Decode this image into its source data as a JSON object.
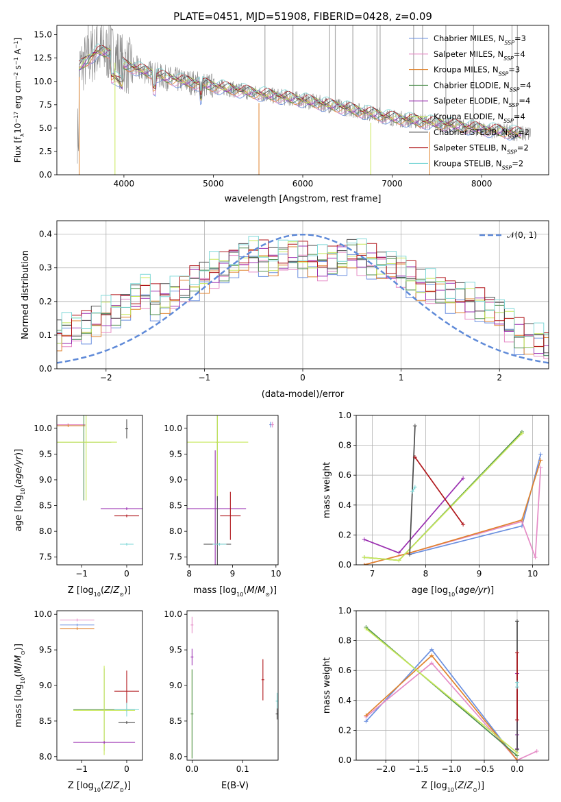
{
  "colors": {
    "Chabrier MILES": "#6a8fdf",
    "Salpeter MILES": "#e58bc6",
    "Kroupa MILES": "#e0822c",
    "Chabrier ELODIE": "#4e8f4e",
    "Salpeter ELODIE": "#9a2fb0",
    "Kroupa ELODIE": "#c8e85a",
    "Chabrier STELIB": "#4a4a4a",
    "Salpeter STELIB": "#b0151a",
    "Kroupa STELIB": "#7fd8d8",
    "gaussian": "#5f8ad8",
    "observed": "#888888"
  },
  "chart_data": [
    {
      "id": "spectrum",
      "type": "line",
      "title": "PLATE=0451, MJD=51908, FIBERID=0428, z=0.09",
      "xlabel": "wavelength [Angstrom, rest frame]",
      "ylabel": "Flux [f_λ10^{-17} erg cm^{-2} s^{-1} A^{-1}]",
      "xlim": [
        3250,
        8750
      ],
      "ylim": [
        0,
        16
      ],
      "xticks": [
        4000,
        5000,
        6000,
        7000,
        8000
      ],
      "yticks": [
        0.0,
        2.5,
        5.0,
        7.5,
        10.0,
        12.5,
        15.0
      ],
      "ytick_labels": [
        "0.0",
        "2.5",
        "5.0",
        "7.5",
        "10.0",
        "12.5",
        "15.0"
      ],
      "legend_placement": "right",
      "legend": [
        {
          "model": "Chabrier MILES",
          "nssp": "3"
        },
        {
          "model": "Salpeter MILES",
          "nssp": "4"
        },
        {
          "model": "Kroupa MILES",
          "nssp": "3"
        },
        {
          "model": "Chabrier ELODIE",
          "nssp": "4"
        },
        {
          "model": "Salpeter ELODIE",
          "nssp": "4"
        },
        {
          "model": "Kroupa ELODIE",
          "nssp": "4"
        },
        {
          "model": "Chabrier STELIB",
          "nssp": "2"
        },
        {
          "model": "Salpeter STELIB",
          "nssp": "2"
        },
        {
          "model": "Kroupa STELIB",
          "nssp": "2"
        }
      ],
      "continuum": {
        "x": [
          3500,
          3700,
          3900,
          4000,
          4200,
          4500,
          5000,
          5500,
          6000,
          6500,
          7000,
          7500,
          8000,
          8450
        ],
        "y": [
          11.5,
          13.2,
          13.0,
          11.8,
          11.2,
          10.3,
          9.5,
          8.7,
          8.0,
          7.1,
          6.1,
          5.5,
          4.9,
          4.4
        ]
      },
      "observed_range": [
        3480,
        8550
      ],
      "sky_lines": [
        3600,
        3650,
        3700,
        3750,
        3850,
        5577,
        5890,
        6300,
        6364,
        6560,
        6830,
        6865,
        7240,
        7340,
        7600,
        7910,
        8340,
        8400
      ]
    },
    {
      "id": "residuals",
      "type": "line",
      "xlabel": "(data-model)/error",
      "ylabel": "Normed distribution",
      "xlim": [
        -2.5,
        2.5
      ],
      "ylim": [
        0,
        0.44
      ],
      "xticks": [
        -2,
        -1,
        0,
        1,
        2
      ],
      "xtick_labels": [
        "−2",
        "−1",
        "0",
        "1",
        "2"
      ],
      "yticks": [
        0.0,
        0.1,
        0.2,
        0.3,
        0.4
      ],
      "ytick_labels": [
        "0.0",
        "0.1",
        "0.2",
        "0.3",
        "0.4"
      ],
      "grid": true,
      "legend_placement": "top-right",
      "gaussian_label": "𝒩(0, 1)",
      "bin_width": 0.1,
      "histogram_base": [
        0.1,
        0.11,
        0.12,
        0.13,
        0.14,
        0.16,
        0.17,
        0.19,
        0.21,
        0.23,
        0.2,
        0.21,
        0.22,
        0.24,
        0.26,
        0.27,
        0.29,
        0.3,
        0.32,
        0.33,
        0.34,
        0.33,
        0.32,
        0.33,
        0.34,
        0.33,
        0.32,
        0.31,
        0.32,
        0.33,
        0.34,
        0.33,
        0.32,
        0.31,
        0.3,
        0.29,
        0.27,
        0.25,
        0.24,
        0.23,
        0.22,
        0.21,
        0.2,
        0.19,
        0.18,
        0.16,
        0.13,
        0.1,
        0.09,
        0.08,
        0.07
      ]
    },
    {
      "id": "age-vs-z",
      "type": "scatter",
      "xlabel": "Z [log10(Z/Z⊙)]",
      "ylabel": "age  [log10(age/yr)]",
      "xlim": [
        -1.55,
        0.35
      ],
      "ylim": [
        7.35,
        10.25
      ],
      "xticks": [
        -1,
        0
      ],
      "xtick_labels": [
        "−1",
        "0"
      ],
      "yticks": [
        7.5,
        8.0,
        8.5,
        9.0,
        9.5,
        10.0
      ],
      "ytick_labels": [
        "7.5",
        "8.0",
        "8.5",
        "9.0",
        "9.5",
        "10.0"
      ],
      "points": [
        {
          "model": "Chabrier MILES",
          "x": -1.3,
          "y": 10.07
        },
        {
          "model": "Salpeter MILES",
          "x": -1.3,
          "y": 10.07
        },
        {
          "model": "Kroupa MILES",
          "x": -1.3,
          "y": 10.05
        },
        {
          "model": "Chabrier ELODIE",
          "x": -0.95,
          "y": 9.73
        },
        {
          "model": "Kroupa ELODIE",
          "x": -0.9,
          "y": 9.73
        },
        {
          "model": "Salpeter ELODIE",
          "x": 0.0,
          "y": 8.44
        },
        {
          "model": "Salpeter STELIB",
          "x": 0.0,
          "y": 8.3
        },
        {
          "model": "Kroupa STELIB",
          "x": 0.0,
          "y": 7.75
        },
        {
          "model": "Chabrier STELIB",
          "x": 0.0,
          "y": 9.99
        }
      ]
    },
    {
      "id": "age-vs-mass",
      "type": "scatter",
      "xlabel": "mass [log10(M/M⊙)]",
      "ylabel": "",
      "xlim": [
        7.95,
        10.05
      ],
      "ylim": [
        7.35,
        10.25
      ],
      "xticks": [
        8,
        9,
        10
      ],
      "xtick_labels": [
        "8",
        "9",
        "10"
      ],
      "yticks": [
        7.5,
        8.0,
        8.5,
        9.0,
        9.5,
        10.0
      ],
      "ytick_labels": [
        "7.5",
        "8.0",
        "8.5",
        "9.0",
        "9.5",
        "10.0"
      ],
      "points": [
        {
          "model": "Chabrier ELODIE",
          "x": 8.65,
          "y": 9.73
        },
        {
          "model": "Kroupa ELODIE",
          "x": 8.65,
          "y": 9.73
        },
        {
          "model": "Salpeter ELODIE",
          "x": 8.6,
          "y": 8.44
        },
        {
          "model": "Salpeter STELIB",
          "x": 8.95,
          "y": 8.3
        },
        {
          "model": "Chabrier STELIB",
          "x": 8.65,
          "y": 7.75
        },
        {
          "model": "Kroupa STELIB",
          "x": 8.7,
          "y": 7.75
        },
        {
          "model": "Chabrier MILES",
          "x": 9.88,
          "y": 10.07
        },
        {
          "model": "Salpeter MILES",
          "x": 9.92,
          "y": 10.07
        }
      ]
    },
    {
      "id": "weight-vs-age",
      "type": "line",
      "xlabel": "age  [log10(age/yr)]",
      "ylabel": "mass weight",
      "xlim": [
        6.7,
        10.3
      ],
      "ylim": [
        0.0,
        1.0
      ],
      "xticks": [
        7,
        8,
        9,
        10
      ],
      "xtick_labels": [
        "7",
        "8",
        "9",
        "10"
      ],
      "yticks": [
        0.0,
        0.2,
        0.4,
        0.6,
        0.8,
        1.0
      ],
      "ytick_labels": [
        "0.0",
        "0.2",
        "0.4",
        "0.6",
        "0.8",
        "1.0"
      ],
      "grid": true,
      "series": [
        {
          "model": "Chabrier MILES",
          "x": [
            7.7,
            9.8,
            10.15
          ],
          "y": [
            0.07,
            0.26,
            0.74
          ]
        },
        {
          "model": "Salpeter MILES",
          "x": [
            6.85,
            7.7,
            9.8,
            10.05,
            10.15
          ],
          "y": [
            0.0,
            0.08,
            0.29,
            0.05,
            0.65
          ]
        },
        {
          "model": "Kroupa MILES",
          "x": [
            6.85,
            7.7,
            9.8,
            10.15
          ],
          "y": [
            0.0,
            0.08,
            0.3,
            0.7
          ]
        },
        {
          "model": "Chabrier ELODIE",
          "x": [
            6.85,
            7.5,
            9.8
          ],
          "y": [
            0.05,
            0.03,
            0.89
          ]
        },
        {
          "model": "Salpeter ELODIE",
          "x": [
            6.85,
            7.5,
            8.7
          ],
          "y": [
            0.17,
            0.08,
            0.58
          ]
        },
        {
          "model": "Kroupa ELODIE",
          "x": [
            6.85,
            7.5,
            9.8
          ],
          "y": [
            0.05,
            0.03,
            0.88
          ]
        },
        {
          "model": "Chabrier STELIB",
          "x": [
            7.7,
            7.8
          ],
          "y": [
            0.07,
            0.93
          ]
        },
        {
          "model": "Salpeter STELIB",
          "x": [
            7.8,
            8.7
          ],
          "y": [
            0.72,
            0.27
          ]
        },
        {
          "model": "Kroupa STELIB",
          "x": [
            7.75,
            7.8
          ],
          "y": [
            0.49,
            0.52
          ]
        }
      ]
    },
    {
      "id": "mass-vs-z",
      "type": "scatter",
      "xlabel": "Z [log10(Z/Z⊙)]",
      "ylabel": "mass [log10(M/M⊙)]",
      "xlim": [
        -1.55,
        0.35
      ],
      "ylim": [
        7.95,
        10.05
      ],
      "xticks": [
        -1,
        0
      ],
      "xtick_labels": [
        "−1",
        "0"
      ],
      "yticks": [
        8.0,
        8.5,
        9.0,
        9.5,
        10.0
      ],
      "ytick_labels": [
        "8.0",
        "8.5",
        "9.0",
        "9.5",
        "10.0"
      ],
      "points": [
        {
          "model": "Salpeter MILES",
          "x": -1.1,
          "y": 9.92
        },
        {
          "model": "Chabrier MILES",
          "x": -1.1,
          "y": 9.85
        },
        {
          "model": "Kroupa MILES",
          "x": -1.1,
          "y": 9.8
        },
        {
          "model": "Chabrier ELODIE",
          "x": -0.5,
          "y": 8.66
        },
        {
          "model": "Kroupa ELODIE",
          "x": -0.5,
          "y": 8.65
        },
        {
          "model": "Salpeter ELODIE",
          "x": -0.5,
          "y": 8.2
        },
        {
          "model": "Salpeter STELIB",
          "x": 0.0,
          "y": 8.92
        },
        {
          "model": "Chabrier STELIB",
          "x": 0.0,
          "y": 8.48
        },
        {
          "model": "Kroupa STELIB",
          "x": 0.0,
          "y": 8.66
        }
      ]
    },
    {
      "id": "mass-vs-ebv",
      "type": "scatter",
      "xlabel": "E(B-V)",
      "ylabel": "",
      "xlim": [
        -0.01,
        0.17
      ],
      "ylim": [
        7.95,
        10.05
      ],
      "xticks": [
        0.0,
        0.1
      ],
      "xtick_labels": [
        "0.0",
        "0.1"
      ],
      "yticks": [
        8.0,
        8.5,
        9.0,
        9.5,
        10.0
      ],
      "ytick_labels": [
        "8.0",
        "8.5",
        "9.0",
        "9.5",
        "10.0"
      ],
      "points": [
        {
          "model": "Salpeter MILES",
          "x": 0.0,
          "y": 9.85
        },
        {
          "model": "Salpeter ELODIE",
          "x": 0.0,
          "y": 9.4
        },
        {
          "model": "Kroupa ELODIE",
          "x": 0.0,
          "y": 8.6
        },
        {
          "model": "Chabrier ELODIE",
          "x": 0.0,
          "y": 8.6
        },
        {
          "model": "Salpeter STELIB",
          "x": 0.14,
          "y": 9.08
        },
        {
          "model": "Kroupa STELIB",
          "x": 0.168,
          "y": 8.78
        },
        {
          "model": "Chabrier STELIB",
          "x": 0.168,
          "y": 8.6
        }
      ]
    },
    {
      "id": "weight-vs-z",
      "type": "line",
      "xlabel": "Z [log10(Z/Z⊙)]",
      "ylabel": "mass weight",
      "xlim": [
        -2.45,
        0.48
      ],
      "ylim": [
        0.0,
        1.0
      ],
      "xticks": [
        -2.0,
        -1.5,
        -1.0,
        -0.5,
        0.0
      ],
      "xtick_labels": [
        "−2.0",
        "−1.5",
        "−1.0",
        "−0.5",
        "0.0"
      ],
      "yticks": [
        0.0,
        0.2,
        0.4,
        0.6,
        0.8,
        1.0
      ],
      "ytick_labels": [
        "0.0",
        "0.2",
        "0.4",
        "0.6",
        "0.8",
        "1.0"
      ],
      "grid": true,
      "series": [
        {
          "model": "Chabrier MILES",
          "x": [
            -2.3,
            -1.3,
            0.0
          ],
          "y": [
            0.26,
            0.74,
            0.0
          ]
        },
        {
          "model": "Salpeter MILES",
          "x": [
            -2.3,
            -1.3,
            0.0,
            0.3
          ],
          "y": [
            0.29,
            0.65,
            0.0,
            0.06
          ]
        },
        {
          "model": "Kroupa MILES",
          "x": [
            -2.3,
            -1.3,
            0.0
          ],
          "y": [
            0.3,
            0.7,
            0.0
          ]
        },
        {
          "model": "Chabrier ELODIE",
          "x": [
            -2.3,
            0.0
          ],
          "y": [
            0.89,
            0.03
          ]
        },
        {
          "model": "Kroupa ELODIE",
          "x": [
            -2.3,
            0.0
          ],
          "y": [
            0.88,
            0.05
          ]
        },
        {
          "model": "Salpeter ELODIE",
          "x": [
            0.0,
            0.0,
            0.0
          ],
          "y": [
            0.08,
            0.17,
            0.58
          ]
        },
        {
          "model": "Chabrier STELIB",
          "x": [
            0.0,
            0.0
          ],
          "y": [
            0.07,
            0.93
          ]
        },
        {
          "model": "Salpeter STELIB",
          "x": [
            0.0,
            0.0
          ],
          "y": [
            0.27,
            0.72
          ]
        },
        {
          "model": "Kroupa STELIB",
          "x": [
            0.0,
            0.0
          ],
          "y": [
            0.49,
            0.52
          ]
        }
      ]
    }
  ]
}
